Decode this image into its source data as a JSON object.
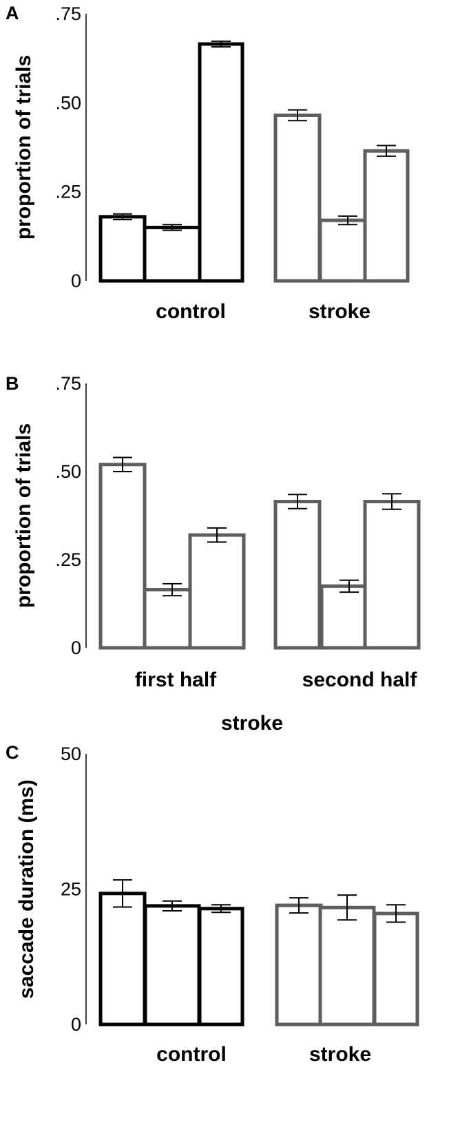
{
  "chart_data": [
    {
      "panel": "A",
      "type": "bar",
      "ylabel": "proportion of trials",
      "xlabel": "",
      "ylim": [
        0,
        0.75
      ],
      "yticks": [
        0,
        0.25,
        0.5,
        0.75
      ],
      "ytick_labels": [
        "0",
        ".25",
        ".50",
        ".75"
      ],
      "groups": [
        {
          "label": "control",
          "color": "#000000",
          "values": [
            0.18,
            0.15,
            0.665
          ],
          "errors": [
            0.008,
            0.008,
            0.008
          ]
        },
        {
          "label": "stroke",
          "color": "#5e5e5e",
          "values": [
            0.465,
            0.17,
            0.365
          ],
          "errors": [
            0.015,
            0.012,
            0.015
          ]
        }
      ]
    },
    {
      "panel": "B",
      "type": "bar",
      "ylabel": "proportion of trials",
      "xlabel": "stroke",
      "ylim": [
        0,
        0.75
      ],
      "yticks": [
        0,
        0.25,
        0.5,
        0.75
      ],
      "ytick_labels": [
        "0",
        ".25",
        ".50",
        ".75"
      ],
      "groups": [
        {
          "label": "first half",
          "color": "#5e5e5e",
          "values": [
            0.52,
            0.165,
            0.32
          ],
          "errors": [
            0.02,
            0.017,
            0.02
          ]
        },
        {
          "label": "second half",
          "color": "#5e5e5e",
          "values": [
            0.415,
            0.175,
            0.415
          ],
          "errors": [
            0.02,
            0.017,
            0.022
          ]
        }
      ]
    },
    {
      "panel": "C",
      "type": "bar",
      "ylabel": "saccade duration (ms)",
      "xlabel": "",
      "ylim": [
        0,
        50
      ],
      "yticks": [
        0,
        25,
        50
      ],
      "ytick_labels": [
        "0",
        "25",
        "50"
      ],
      "groups": [
        {
          "label": "control",
          "color": "#000000",
          "values": [
            24.2,
            21.9,
            21.4
          ],
          "errors": [
            2.5,
            0.9,
            0.7
          ]
        },
        {
          "label": "stroke",
          "color": "#5e5e5e",
          "values": [
            22.0,
            21.6,
            20.5
          ],
          "errors": [
            1.4,
            2.3,
            1.6
          ]
        }
      ]
    }
  ]
}
